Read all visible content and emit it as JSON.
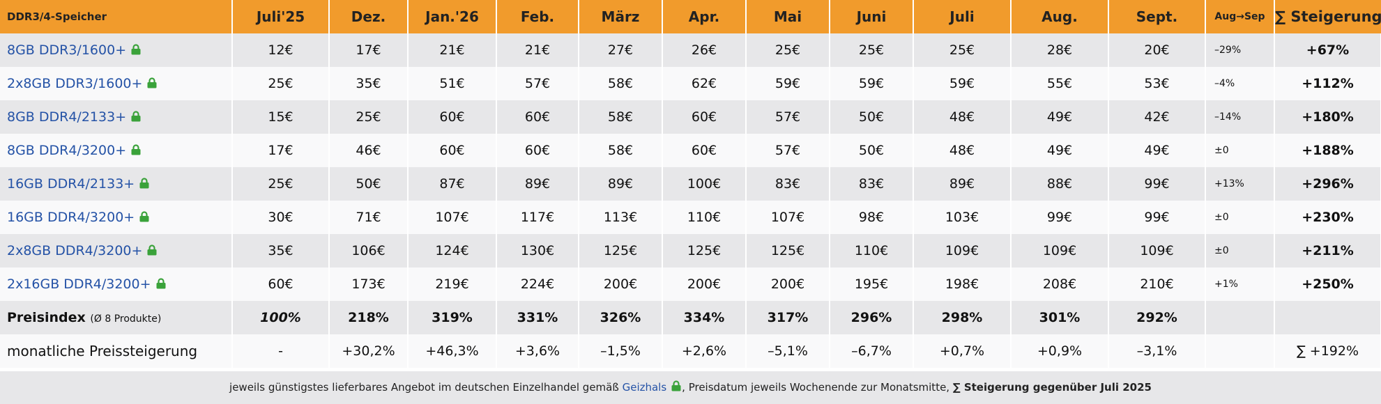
{
  "header": {
    "title": "DDR3/4-Speicher",
    "months": [
      "Juli'25",
      "Dez.",
      "Jan.'26",
      "Feb.",
      "März",
      "Apr.",
      "Mai",
      "Juni",
      "Juli",
      "Aug.",
      "Sept."
    ],
    "change_label": "Aug→Sep",
    "total_label": "∑ Steigerung"
  },
  "accent_color": "#f19b2c",
  "link_color": "#2452a6",
  "lock_color": "#3aa23a",
  "rows": [
    {
      "label": "8GB DDR3/1600+",
      "values": [
        "12€",
        "17€",
        "21€",
        "21€",
        "27€",
        "26€",
        "25€",
        "25€",
        "25€",
        "28€",
        "20€"
      ],
      "change": "–29%",
      "total": "+67%"
    },
    {
      "label": "2x8GB DDR3/1600+",
      "values": [
        "25€",
        "35€",
        "51€",
        "57€",
        "58€",
        "62€",
        "59€",
        "59€",
        "59€",
        "55€",
        "53€"
      ],
      "change": "–4%",
      "total": "+112%"
    },
    {
      "label": "8GB DDR4/2133+",
      "values": [
        "15€",
        "25€",
        "60€",
        "60€",
        "58€",
        "60€",
        "57€",
        "50€",
        "48€",
        "49€",
        "42€"
      ],
      "change": "–14%",
      "total": "+180%"
    },
    {
      "label": "8GB DDR4/3200+",
      "values": [
        "17€",
        "46€",
        "60€",
        "60€",
        "58€",
        "60€",
        "57€",
        "50€",
        "48€",
        "49€",
        "49€"
      ],
      "change": "±0",
      "total": "+188%"
    },
    {
      "label": "16GB DDR4/2133+",
      "values": [
        "25€",
        "50€",
        "87€",
        "89€",
        "89€",
        "100€",
        "83€",
        "83€",
        "89€",
        "88€",
        "99€"
      ],
      "change": "+13%",
      "total": "+296%"
    },
    {
      "label": "16GB DDR4/3200+",
      "values": [
        "30€",
        "71€",
        "107€",
        "117€",
        "113€",
        "110€",
        "107€",
        "98€",
        "103€",
        "99€",
        "99€"
      ],
      "change": "±0",
      "total": "+230%"
    },
    {
      "label": "2x8GB DDR4/3200+",
      "values": [
        "35€",
        "106€",
        "124€",
        "130€",
        "125€",
        "125€",
        "125€",
        "110€",
        "109€",
        "109€",
        "109€"
      ],
      "change": "±0",
      "total": "+211%"
    },
    {
      "label": "2x16GB DDR4/3200+",
      "values": [
        "60€",
        "173€",
        "219€",
        "224€",
        "200€",
        "200€",
        "200€",
        "195€",
        "198€",
        "208€",
        "210€"
      ],
      "change": "+1%",
      "total": "+250%"
    }
  ],
  "index_row": {
    "label": "Preisindex",
    "sublabel": "(Ø 8 Produkte)",
    "values": [
      "100%",
      "218%",
      "319%",
      "331%",
      "326%",
      "334%",
      "317%",
      "296%",
      "298%",
      "301%",
      "292%"
    ]
  },
  "monthly_row": {
    "label": "monatliche Preissteigerung",
    "values": [
      "-",
      "+30,2%",
      "+46,3%",
      "+3,6%",
      "–1,5%",
      "+2,6%",
      "–5,1%",
      "–6,7%",
      "+0,7%",
      "+0,9%",
      "–3,1%"
    ],
    "total": "∑ +192%"
  },
  "footer": {
    "text_before": "jeweils günstigstes lieferbares Angebot im deutschen Einzelhandel gemäß ",
    "link": "Geizhals",
    "text_after": ", Preisdatum jeweils Wochenende zur Monatsmitte, ",
    "bold": "∑ Steigerung gegenüber Juli 2025"
  }
}
